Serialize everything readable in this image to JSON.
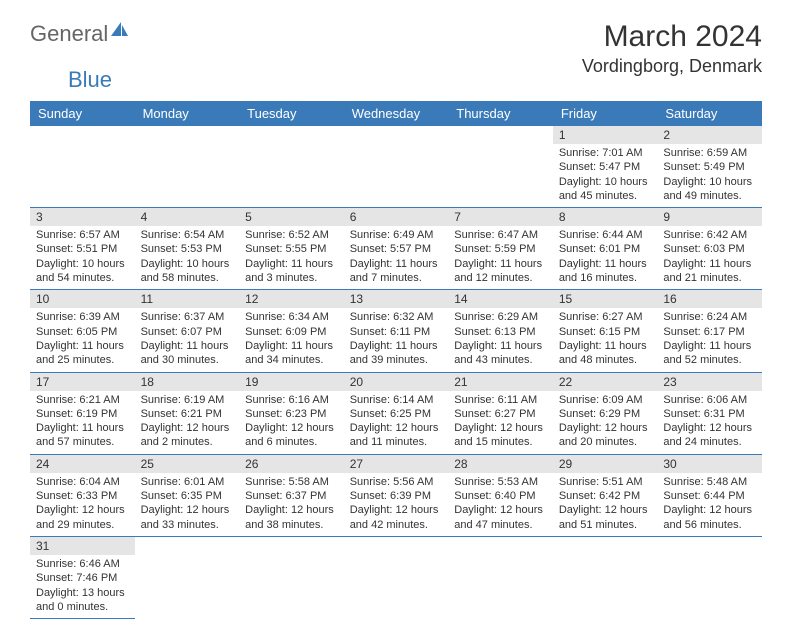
{
  "logo": {
    "part1": "General",
    "part2": "Blue"
  },
  "title": "March 2024",
  "location": "Vordingborg, Denmark",
  "colors": {
    "header_bg": "#3a7ab8",
    "header_text": "#ffffff",
    "daynum_bg": "#e5e5e5",
    "border": "#3a7ab8",
    "text": "#333333",
    "logo_gray": "#666666",
    "logo_blue": "#3a7ab8",
    "bg": "#ffffff"
  },
  "weekdays": [
    "Sunday",
    "Monday",
    "Tuesday",
    "Wednesday",
    "Thursday",
    "Friday",
    "Saturday"
  ],
  "weeks": [
    [
      null,
      null,
      null,
      null,
      null,
      {
        "n": "1",
        "sr": "Sunrise: 7:01 AM",
        "ss": "Sunset: 5:47 PM",
        "d1": "Daylight: 10 hours",
        "d2": "and 45 minutes."
      },
      {
        "n": "2",
        "sr": "Sunrise: 6:59 AM",
        "ss": "Sunset: 5:49 PM",
        "d1": "Daylight: 10 hours",
        "d2": "and 49 minutes."
      }
    ],
    [
      {
        "n": "3",
        "sr": "Sunrise: 6:57 AM",
        "ss": "Sunset: 5:51 PM",
        "d1": "Daylight: 10 hours",
        "d2": "and 54 minutes."
      },
      {
        "n": "4",
        "sr": "Sunrise: 6:54 AM",
        "ss": "Sunset: 5:53 PM",
        "d1": "Daylight: 10 hours",
        "d2": "and 58 minutes."
      },
      {
        "n": "5",
        "sr": "Sunrise: 6:52 AM",
        "ss": "Sunset: 5:55 PM",
        "d1": "Daylight: 11 hours",
        "d2": "and 3 minutes."
      },
      {
        "n": "6",
        "sr": "Sunrise: 6:49 AM",
        "ss": "Sunset: 5:57 PM",
        "d1": "Daylight: 11 hours",
        "d2": "and 7 minutes."
      },
      {
        "n": "7",
        "sr": "Sunrise: 6:47 AM",
        "ss": "Sunset: 5:59 PM",
        "d1": "Daylight: 11 hours",
        "d2": "and 12 minutes."
      },
      {
        "n": "8",
        "sr": "Sunrise: 6:44 AM",
        "ss": "Sunset: 6:01 PM",
        "d1": "Daylight: 11 hours",
        "d2": "and 16 minutes."
      },
      {
        "n": "9",
        "sr": "Sunrise: 6:42 AM",
        "ss": "Sunset: 6:03 PM",
        "d1": "Daylight: 11 hours",
        "d2": "and 21 minutes."
      }
    ],
    [
      {
        "n": "10",
        "sr": "Sunrise: 6:39 AM",
        "ss": "Sunset: 6:05 PM",
        "d1": "Daylight: 11 hours",
        "d2": "and 25 minutes."
      },
      {
        "n": "11",
        "sr": "Sunrise: 6:37 AM",
        "ss": "Sunset: 6:07 PM",
        "d1": "Daylight: 11 hours",
        "d2": "and 30 minutes."
      },
      {
        "n": "12",
        "sr": "Sunrise: 6:34 AM",
        "ss": "Sunset: 6:09 PM",
        "d1": "Daylight: 11 hours",
        "d2": "and 34 minutes."
      },
      {
        "n": "13",
        "sr": "Sunrise: 6:32 AM",
        "ss": "Sunset: 6:11 PM",
        "d1": "Daylight: 11 hours",
        "d2": "and 39 minutes."
      },
      {
        "n": "14",
        "sr": "Sunrise: 6:29 AM",
        "ss": "Sunset: 6:13 PM",
        "d1": "Daylight: 11 hours",
        "d2": "and 43 minutes."
      },
      {
        "n": "15",
        "sr": "Sunrise: 6:27 AM",
        "ss": "Sunset: 6:15 PM",
        "d1": "Daylight: 11 hours",
        "d2": "and 48 minutes."
      },
      {
        "n": "16",
        "sr": "Sunrise: 6:24 AM",
        "ss": "Sunset: 6:17 PM",
        "d1": "Daylight: 11 hours",
        "d2": "and 52 minutes."
      }
    ],
    [
      {
        "n": "17",
        "sr": "Sunrise: 6:21 AM",
        "ss": "Sunset: 6:19 PM",
        "d1": "Daylight: 11 hours",
        "d2": "and 57 minutes."
      },
      {
        "n": "18",
        "sr": "Sunrise: 6:19 AM",
        "ss": "Sunset: 6:21 PM",
        "d1": "Daylight: 12 hours",
        "d2": "and 2 minutes."
      },
      {
        "n": "19",
        "sr": "Sunrise: 6:16 AM",
        "ss": "Sunset: 6:23 PM",
        "d1": "Daylight: 12 hours",
        "d2": "and 6 minutes."
      },
      {
        "n": "20",
        "sr": "Sunrise: 6:14 AM",
        "ss": "Sunset: 6:25 PM",
        "d1": "Daylight: 12 hours",
        "d2": "and 11 minutes."
      },
      {
        "n": "21",
        "sr": "Sunrise: 6:11 AM",
        "ss": "Sunset: 6:27 PM",
        "d1": "Daylight: 12 hours",
        "d2": "and 15 minutes."
      },
      {
        "n": "22",
        "sr": "Sunrise: 6:09 AM",
        "ss": "Sunset: 6:29 PM",
        "d1": "Daylight: 12 hours",
        "d2": "and 20 minutes."
      },
      {
        "n": "23",
        "sr": "Sunrise: 6:06 AM",
        "ss": "Sunset: 6:31 PM",
        "d1": "Daylight: 12 hours",
        "d2": "and 24 minutes."
      }
    ],
    [
      {
        "n": "24",
        "sr": "Sunrise: 6:04 AM",
        "ss": "Sunset: 6:33 PM",
        "d1": "Daylight: 12 hours",
        "d2": "and 29 minutes."
      },
      {
        "n": "25",
        "sr": "Sunrise: 6:01 AM",
        "ss": "Sunset: 6:35 PM",
        "d1": "Daylight: 12 hours",
        "d2": "and 33 minutes."
      },
      {
        "n": "26",
        "sr": "Sunrise: 5:58 AM",
        "ss": "Sunset: 6:37 PM",
        "d1": "Daylight: 12 hours",
        "d2": "and 38 minutes."
      },
      {
        "n": "27",
        "sr": "Sunrise: 5:56 AM",
        "ss": "Sunset: 6:39 PM",
        "d1": "Daylight: 12 hours",
        "d2": "and 42 minutes."
      },
      {
        "n": "28",
        "sr": "Sunrise: 5:53 AM",
        "ss": "Sunset: 6:40 PM",
        "d1": "Daylight: 12 hours",
        "d2": "and 47 minutes."
      },
      {
        "n": "29",
        "sr": "Sunrise: 5:51 AM",
        "ss": "Sunset: 6:42 PM",
        "d1": "Daylight: 12 hours",
        "d2": "and 51 minutes."
      },
      {
        "n": "30",
        "sr": "Sunrise: 5:48 AM",
        "ss": "Sunset: 6:44 PM",
        "d1": "Daylight: 12 hours",
        "d2": "and 56 minutes."
      }
    ],
    [
      {
        "n": "31",
        "sr": "Sunrise: 6:46 AM",
        "ss": "Sunset: 7:46 PM",
        "d1": "Daylight: 13 hours",
        "d2": "and 0 minutes."
      },
      null,
      null,
      null,
      null,
      null,
      null
    ]
  ]
}
